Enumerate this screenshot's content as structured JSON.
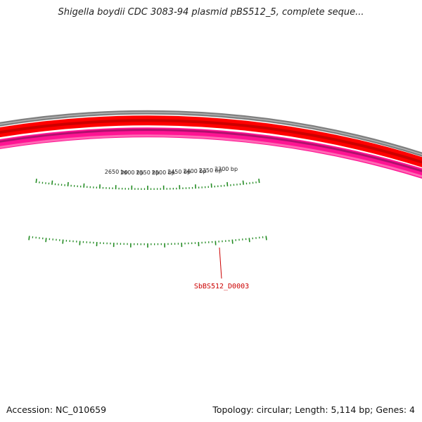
{
  "title": "Shigella boydii CDC 3083-94 plasmid pBS512_5, complete seque...",
  "footer": {
    "accession": "Accession: NC_010659",
    "summary": "Topology: circular; Length: 5,114 bp; Genes: 4"
  },
  "map": {
    "sequence_length_bp": 5114,
    "ruler_labels": [
      {
        "bp": 2300,
        "text": "2300 bp"
      },
      {
        "bp": 2350,
        "text": "2350 bp"
      },
      {
        "bp": 2400,
        "text": "2400 bp"
      },
      {
        "bp": 2450,
        "text": "2450 bp"
      },
      {
        "bp": 2500,
        "text": "2500 bp"
      },
      {
        "bp": 2550,
        "text": "2550 bp"
      },
      {
        "bp": 2600,
        "text": "2600 bp"
      },
      {
        "bp": 2650,
        "text": "2650 bp"
      }
    ],
    "gene_labels": [
      {
        "text": "SbBS512_D0003",
        "color": "#cc0000"
      }
    ],
    "colors": {
      "backbone": "#808080",
      "forward_track": "#ff0000",
      "forward_track_dark": "#cc0000",
      "reverse_track": "#ff1493",
      "reverse_track_dark": "#b0106e",
      "reverse_track_light": "#ff69b4",
      "ticks": "#228b22"
    }
  }
}
